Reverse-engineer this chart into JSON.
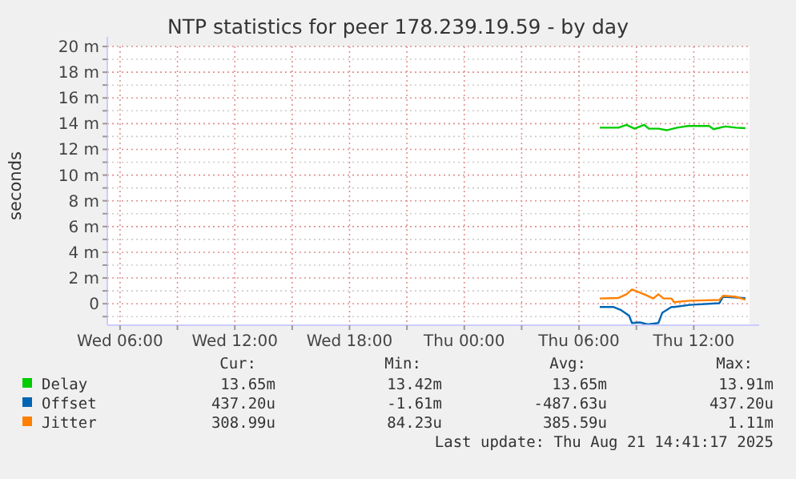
{
  "chart_data": {
    "type": "line",
    "title": "NTP statistics for peer 178.239.19.59 - by day",
    "ylabel": "seconds",
    "xlim": [
      "2025-08-20T05:20",
      "2025-08-21T14:55"
    ],
    "xticks": [
      {
        "value": "2025-08-20T06:00",
        "label": "Wed 06:00"
      },
      {
        "value": "2025-08-20T09:00",
        "label": null
      },
      {
        "value": "2025-08-20T12:00",
        "label": "Wed 12:00"
      },
      {
        "value": "2025-08-20T15:00",
        "label": null
      },
      {
        "value": "2025-08-20T18:00",
        "label": "Wed 18:00"
      },
      {
        "value": "2025-08-20T21:00",
        "label": null
      },
      {
        "value": "2025-08-21T00:00",
        "label": "Thu 00:00"
      },
      {
        "value": "2025-08-21T03:00",
        "label": null
      },
      {
        "value": "2025-08-21T06:00",
        "label": "Thu 06:00"
      },
      {
        "value": "2025-08-21T09:00",
        "label": null
      },
      {
        "value": "2025-08-21T12:00",
        "label": "Thu 12:00"
      }
    ],
    "ylim": [
      -1.67,
      20
    ],
    "yticks": [
      {
        "value": -1,
        "label": null
      },
      0,
      {
        "value": 1,
        "label": null
      },
      {
        "value": 2,
        "label": "2 m"
      },
      {
        "value": 3,
        "label": null
      },
      {
        "value": 4,
        "label": "4 m"
      },
      {
        "value": 5,
        "label": null
      },
      {
        "value": 6,
        "label": "6 m"
      },
      {
        "value": 7,
        "label": null
      },
      {
        "value": 8,
        "label": "8 m"
      },
      {
        "value": 9,
        "label": null
      },
      {
        "value": 10,
        "label": "10 m"
      },
      {
        "value": 11,
        "label": null
      },
      {
        "value": 12,
        "label": "12 m"
      },
      {
        "value": 13,
        "label": null
      },
      {
        "value": 14,
        "label": "14 m"
      },
      {
        "value": 15,
        "label": null
      },
      {
        "value": 16,
        "label": "16 m"
      },
      {
        "value": 17,
        "label": null
      },
      {
        "value": 18,
        "label": "18 m"
      },
      {
        "value": 19,
        "label": null
      },
      {
        "value": 20,
        "label": "20 m"
      }
    ],
    "grid": true,
    "legend": "bottom",
    "series": [
      {
        "name": "Delay",
        "color": "#00cc00",
        "x": [
          "2025-08-21T07:05",
          "2025-08-21T08:04",
          "2025-08-21T08:29",
          "2025-08-21T08:54",
          "2025-08-21T09:24",
          "2025-08-21T09:39",
          "2025-08-21T10:09",
          "2025-08-21T10:35",
          "2025-08-21T11:08",
          "2025-08-21T11:42",
          "2025-08-21T12:48",
          "2025-08-21T13:02",
          "2025-08-21T13:39",
          "2025-08-21T14:12",
          "2025-08-21T14:42"
        ],
        "values": [
          13.69,
          13.69,
          13.91,
          13.61,
          13.91,
          13.61,
          13.61,
          13.49,
          13.69,
          13.82,
          13.82,
          13.57,
          13.78,
          13.69,
          13.65
        ]
      },
      {
        "name": "Offset",
        "color": "#0066b3",
        "x": [
          "2025-08-21T07:05",
          "2025-08-21T07:47",
          "2025-08-21T08:12",
          "2025-08-21T08:37",
          "2025-08-21T08:46",
          "2025-08-21T09:11",
          "2025-08-21T09:36",
          "2025-08-21T10:09",
          "2025-08-21T10:21",
          "2025-08-21T10:50",
          "2025-08-21T10:58",
          "2025-08-21T11:48",
          "2025-08-21T13:20",
          "2025-08-21T13:32",
          "2025-08-21T14:42"
        ],
        "values": [
          -0.25,
          -0.25,
          -0.5,
          -0.92,
          -1.5,
          -1.45,
          -1.61,
          -1.5,
          -0.71,
          -0.25,
          -0.25,
          -0.09,
          0.04,
          0.54,
          0.44
        ]
      },
      {
        "name": "Jitter",
        "color": "#ff8000",
        "x": [
          "2025-08-21T07:05",
          "2025-08-21T08:04",
          "2025-08-21T08:29",
          "2025-08-21T08:46",
          "2025-08-21T09:02",
          "2025-08-21T09:27",
          "2025-08-21T09:53",
          "2025-08-21T10:09",
          "2025-08-21T10:25",
          "2025-08-21T10:50",
          "2025-08-21T10:58",
          "2025-08-21T11:48",
          "2025-08-21T13:20",
          "2025-08-21T13:32",
          "2025-08-21T14:12",
          "2025-08-21T14:29",
          "2025-08-21T14:42"
        ],
        "values": [
          0.41,
          0.45,
          0.74,
          1.11,
          0.95,
          0.7,
          0.41,
          0.74,
          0.41,
          0.41,
          0.12,
          0.24,
          0.29,
          0.62,
          0.54,
          0.41,
          0.31
        ]
      }
    ],
    "annotations": [
      "Cur:",
      "Min:",
      "Avg:",
      "Max:",
      "13.65m",
      "13.42m",
      "13.65m",
      "13.91m",
      "437.20u",
      "-1.61m",
      "-487.63u",
      "437.20u",
      "308.99u",
      "84.23u",
      "385.59u",
      "1.11m",
      "Last update: Thu Aug 21 14:41:17 2025"
    ]
  }
}
